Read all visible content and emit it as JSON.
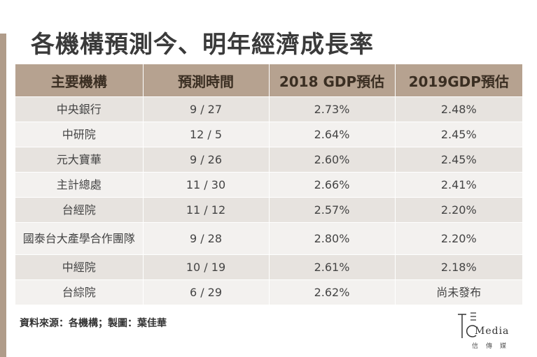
{
  "title": "各機構預測今、明年經濟成長率",
  "table": {
    "headers": [
      "主要機構",
      "預測時間",
      "2018 GDP預估",
      "2019GDP預估"
    ],
    "rows": [
      {
        "org": "中央銀行",
        "date": "9 / 27",
        "gdp2018": "2.73%",
        "gdp2019": "2.48%"
      },
      {
        "org": "中研院",
        "date": "12 / 5",
        "gdp2018": "2.64%",
        "gdp2019": "2.45%"
      },
      {
        "org": "元大寶華",
        "date": "9 / 26",
        "gdp2018": "2.60%",
        "gdp2019": "2.45%"
      },
      {
        "org": "主計總處",
        "date": "11 / 30",
        "gdp2018": "2.66%",
        "gdp2019": "2.41%"
      },
      {
        "org": "台經院",
        "date": "11 / 12",
        "gdp2018": "2.57%",
        "gdp2019": "2.20%"
      },
      {
        "org": "國泰台大產學合作團隊",
        "date": "9 / 28",
        "gdp2018": "2.80%",
        "gdp2019": "2.20%"
      },
      {
        "org": "中經院",
        "date": "10 / 19",
        "gdp2018": "2.61%",
        "gdp2019": "2.18%"
      },
      {
        "org": "台綜院",
        "date": "6 / 29",
        "gdp2018": "2.62%",
        "gdp2019": "尚未發布"
      }
    ]
  },
  "source": "資料來源：各機構；製圖：葉佳華",
  "logo": {
    "text": "Media",
    "subtitle": "信傳媒"
  },
  "colors": {
    "header_bg": "#b6a290",
    "row_odd": "#e7e3df",
    "row_even": "#f3f1ef",
    "accent_bar": "#b09c8a"
  }
}
